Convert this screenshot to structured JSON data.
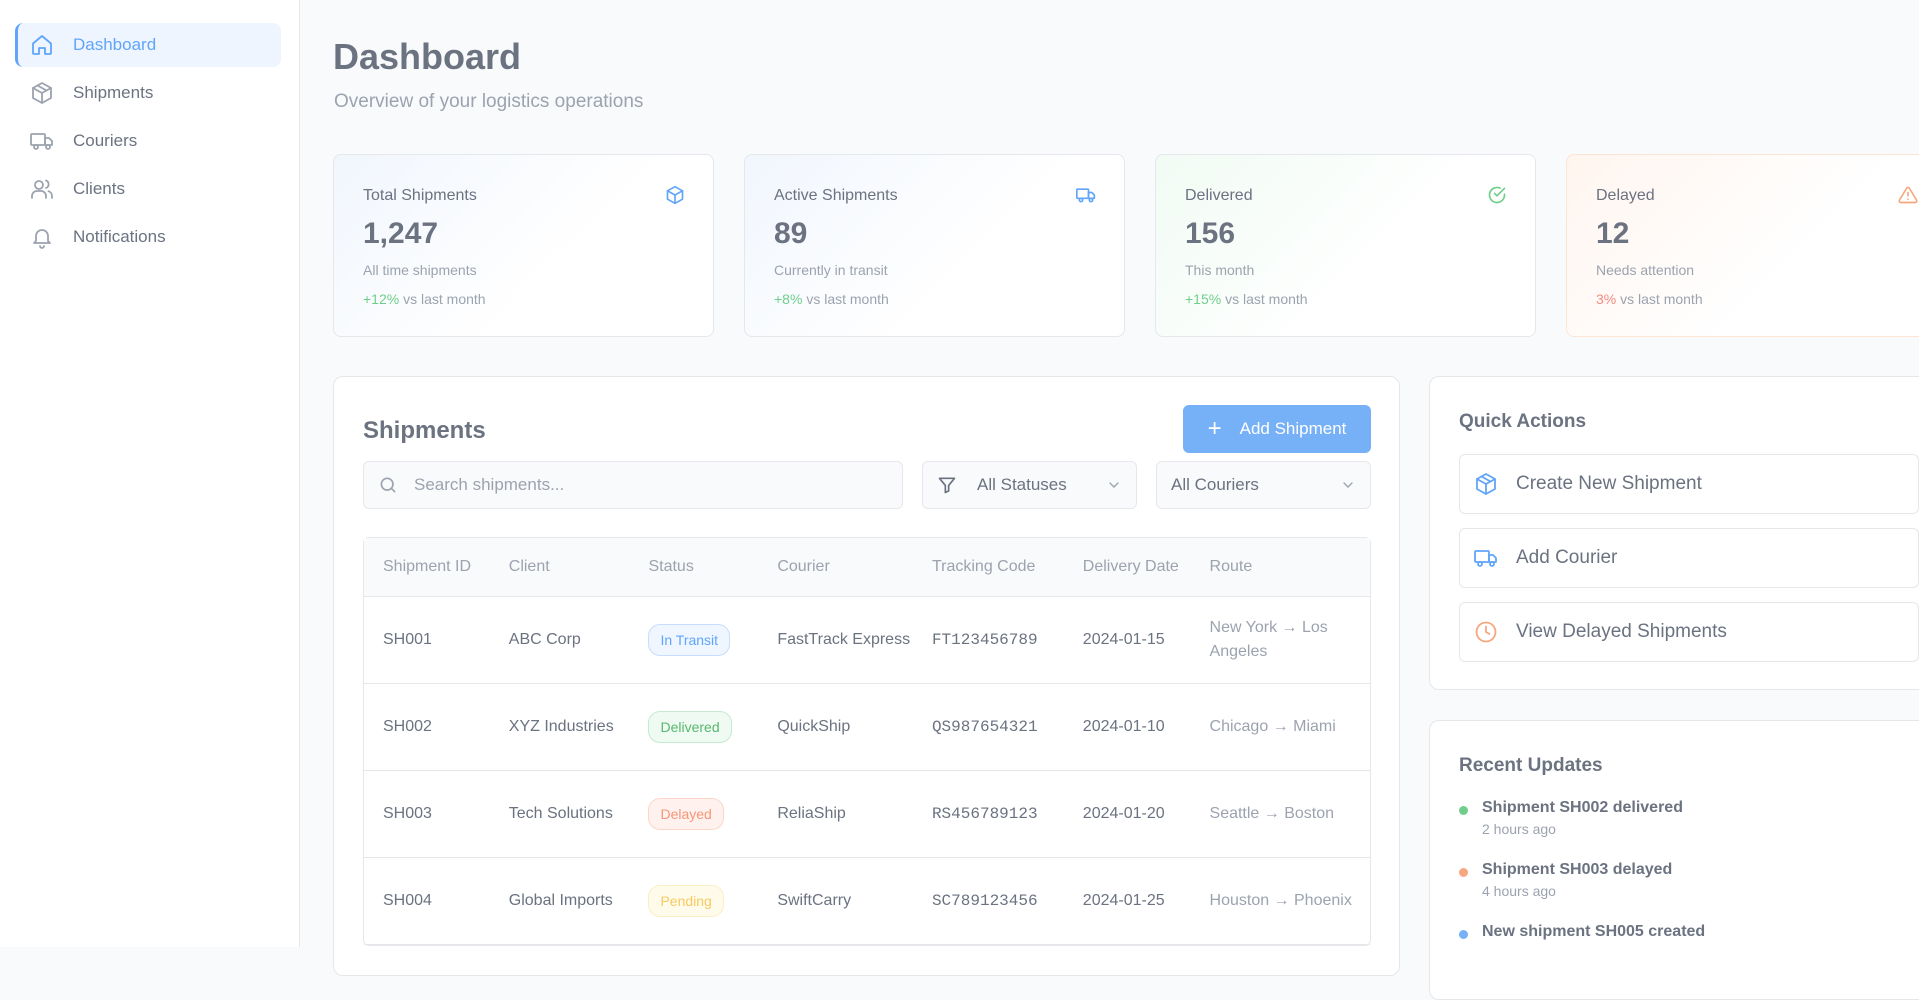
{
  "sidebar": {
    "items": [
      {
        "label": "Dashboard",
        "icon": "home-icon",
        "active": true
      },
      {
        "label": "Shipments",
        "icon": "package-icon"
      },
      {
        "label": "Couriers",
        "icon": "truck-icon"
      },
      {
        "label": "Clients",
        "icon": "users-icon"
      },
      {
        "label": "Notifications",
        "icon": "bell-icon"
      }
    ]
  },
  "header": {
    "title": "Dashboard",
    "subtitle": "Overview of your logistics operations"
  },
  "stats": [
    {
      "label": "Total Shipments",
      "value": "1,247",
      "desc": "All time shipments",
      "trend": "+12%",
      "trend_suffix": "vs last month",
      "icon": "package-icon"
    },
    {
      "label": "Active Shipments",
      "value": "89",
      "desc": "Currently in transit",
      "trend": "+8%",
      "trend_suffix": "vs last month",
      "icon": "truck-icon"
    },
    {
      "label": "Delivered",
      "value": "156",
      "desc": "This month",
      "trend": "+15%",
      "trend_suffix": "vs last month",
      "icon": "check-circle-icon"
    },
    {
      "label": "Delayed",
      "value": "12",
      "desc": "Needs attention",
      "trend": "3%",
      "trend_suffix": "vs last month",
      "icon": "warning-icon"
    }
  ],
  "shipments": {
    "title": "Shipments",
    "add_label": "Add Shipment",
    "search_placeholder": "Search shipments...",
    "status_filter": "All Statuses",
    "courier_filter": "All Couriers",
    "columns": [
      "Shipment ID",
      "Client",
      "Status",
      "Courier",
      "Tracking Code",
      "Delivery Date",
      "Route"
    ],
    "rows": [
      {
        "id": "SH001",
        "client": "ABC Corp",
        "status": "In Transit",
        "courier": "FastTrack Express",
        "tracking": "FT123456789",
        "date": "2024-01-15",
        "route": "New York → Los Angeles"
      },
      {
        "id": "SH002",
        "client": "XYZ Industries",
        "status": "Delivered",
        "courier": "QuickShip",
        "tracking": "QS987654321",
        "date": "2024-01-10",
        "route": "Chicago → Miami"
      },
      {
        "id": "SH003",
        "client": "Tech Solutions",
        "status": "Delayed",
        "courier": "ReliaShip",
        "tracking": "RS456789123",
        "date": "2024-01-20",
        "route": "Seattle → Boston"
      },
      {
        "id": "SH004",
        "client": "Global Imports",
        "status": "Pending",
        "courier": "SwiftCarry",
        "tracking": "SC789123456",
        "date": "2024-01-25",
        "route": "Houston → Phoenix"
      }
    ]
  },
  "quick_actions": {
    "title": "Quick Actions",
    "items": [
      {
        "label": "Create New Shipment",
        "icon": "package-icon"
      },
      {
        "label": "Add Courier",
        "icon": "truck-icon"
      },
      {
        "label": "View Delayed Shipments",
        "icon": "clock-icon"
      }
    ]
  },
  "recent_updates": {
    "title": "Recent Updates",
    "items": [
      {
        "text": "Shipment SH002 delivered",
        "time": "2 hours ago",
        "color": "#6fcf8a"
      },
      {
        "text": "Shipment SH003 delayed",
        "time": "4 hours ago",
        "color": "#f6a77f"
      },
      {
        "text": "New shipment SH005 created",
        "time": "",
        "color": "#76b0f6"
      }
    ]
  },
  "colors": {
    "accent": "#60a5fa",
    "success": "#6fcf8a",
    "warning": "#f6a77f",
    "pending": "#f7c960"
  }
}
